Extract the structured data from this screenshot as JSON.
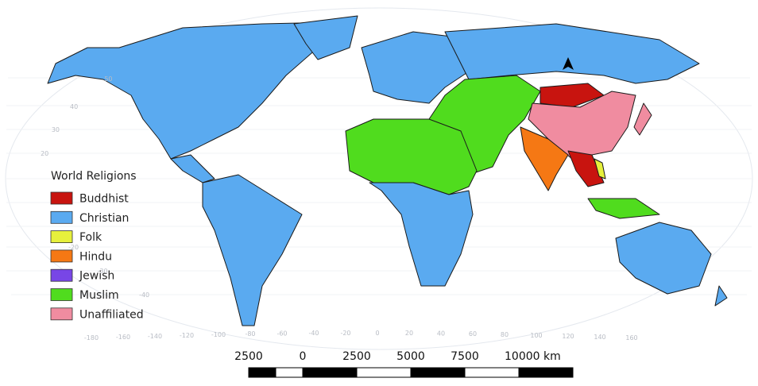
{
  "legend": {
    "title": "World Religions",
    "items": [
      {
        "label": "Buddhist",
        "color": "#c8140f"
      },
      {
        "label": "Christian",
        "color": "#5aaaf0"
      },
      {
        "label": "Folk",
        "color": "#e6f03c"
      },
      {
        "label": "Hindu",
        "color": "#f57814"
      },
      {
        "label": "Jewish",
        "color": "#7846e6"
      },
      {
        "label": "Muslim",
        "color": "#50dc1e"
      },
      {
        "label": "Unaffiliated",
        "color": "#f08ca0"
      }
    ]
  },
  "scale_bar": {
    "labels": [
      "2500",
      "0",
      "2500",
      "5000",
      "7500",
      "10000 km"
    ]
  },
  "graticule": {
    "longitudes": [
      "-180",
      "-160",
      "-140",
      "-120",
      "-100",
      "-80",
      "-60",
      "-40",
      "-20",
      "0",
      "20",
      "40",
      "60",
      "80",
      "100",
      "120",
      "140",
      "160"
    ],
    "latitudes": [
      "50",
      "40",
      "30",
      "20",
      "-20",
      "-30",
      "-40"
    ]
  }
}
